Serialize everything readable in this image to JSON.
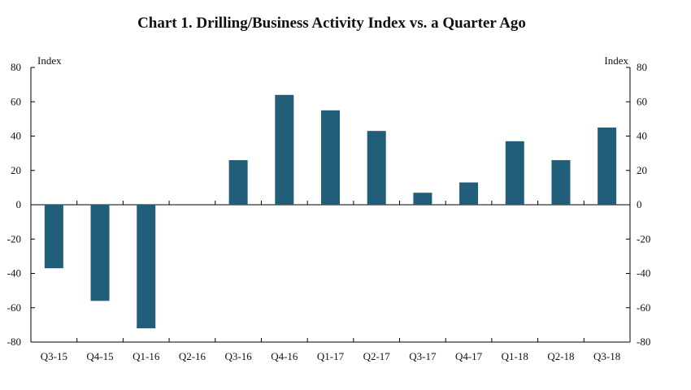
{
  "chart_data": {
    "type": "bar",
    "title": "Chart 1. Drilling/Business Activity Index vs. a Quarter Ago",
    "ylabel_left": "Index",
    "ylabel_right": "Index",
    "categories": [
      "Q3-15",
      "Q4-15",
      "Q1-16",
      "Q2-16",
      "Q3-16",
      "Q4-16",
      "Q1-17",
      "Q2-17",
      "Q3-17",
      "Q4-17",
      "Q1-18",
      "Q2-18",
      "Q3-18"
    ],
    "values": [
      -37,
      -56,
      -72,
      0,
      26,
      64,
      55,
      43,
      7,
      13,
      37,
      26,
      45
    ],
    "ylim": [
      -80,
      80
    ],
    "yticks": [
      -80,
      -60,
      -40,
      -20,
      0,
      20,
      40,
      60,
      80
    ],
    "grid": false,
    "bar_color": "#215e7a",
    "axis_color": "#000000"
  }
}
